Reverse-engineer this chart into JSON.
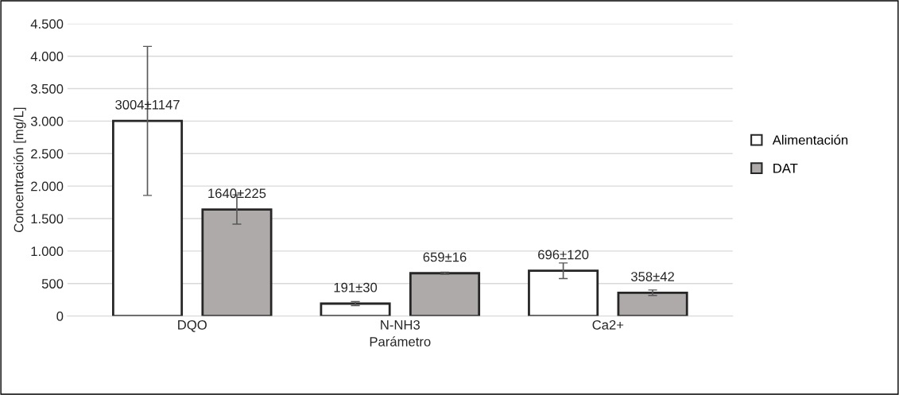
{
  "chart_data": {
    "type": "bar",
    "xlabel": "Parámetro",
    "ylabel": "Concentración [mg/L]",
    "categories": [
      "DQO",
      "N-NH3",
      "Ca2+"
    ],
    "series": [
      {
        "name": "Alimentación",
        "color": "#ffffff",
        "values": [
          3004,
          191,
          696
        ],
        "errors": [
          1147,
          30,
          120
        ],
        "value_labels": [
          "3004±1147",
          "191±30",
          "696±120"
        ]
      },
      {
        "name": "DAT",
        "color": "#aeaaaa",
        "values": [
          1640,
          659,
          358
        ],
        "errors": [
          225,
          16,
          42
        ],
        "value_labels": [
          "1640±225",
          "659±16",
          "358±42"
        ]
      }
    ],
    "ylim": [
      0,
      4500
    ],
    "yticks": [
      0,
      500,
      {
        "value": 1000,
        "label": "1.000"
      },
      {
        "value": 1500,
        "label": "1.500"
      },
      {
        "value": 2000,
        "label": "2.000"
      },
      {
        "value": 2500,
        "label": "2.500"
      },
      {
        "value": 3000,
        "label": "3.000"
      },
      {
        "value": 3500,
        "label": "3.500"
      },
      {
        "value": 4000,
        "label": "4.000"
      },
      {
        "value": 4500,
        "label": "4.500"
      }
    ],
    "grid": "y",
    "legend": "right"
  }
}
